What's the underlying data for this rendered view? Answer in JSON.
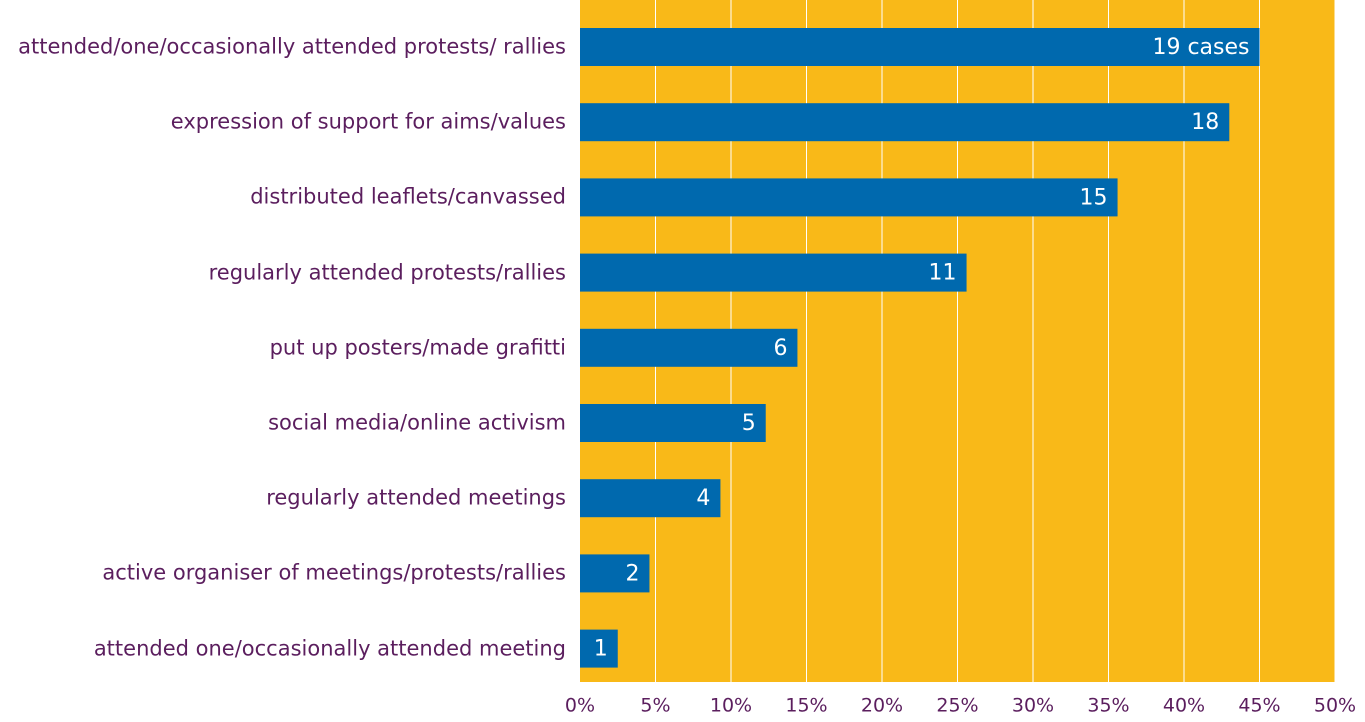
{
  "chart_data": {
    "type": "hbar",
    "categories": [
      "attended/one/occasionally attended protests/ rallies",
      "expression of support for aims/values",
      "distributed leaflets/canvassed",
      "regularly attended protests/rallies",
      "put up posters/made grafitti",
      "social media/online activism",
      "regularly attended meetings",
      "active organiser of meetings/protests/rallies",
      "attended one/occasionally attended meeting"
    ],
    "values": [
      45.0,
      43.0,
      35.6,
      25.6,
      14.4,
      12.3,
      9.3,
      4.6,
      2.5
    ],
    "data_labels": [
      "19 cases",
      "18",
      "15",
      "11",
      "6",
      "5",
      "4",
      "2",
      "1"
    ],
    "color": "#0069ae",
    "background": "#f9b918",
    "xlim": [
      0,
      50
    ],
    "xticks": [
      {
        "value": 0,
        "label": "0%"
      },
      {
        "value": 5,
        "label": "5%"
      },
      {
        "value": 10,
        "label": "10%"
      },
      {
        "value": 15,
        "label": "15%"
      },
      {
        "value": 20,
        "label": "20%"
      },
      {
        "value": 25,
        "label": "25%"
      },
      {
        "value": 30,
        "label": "30%"
      },
      {
        "value": 35,
        "label": "35%"
      },
      {
        "value": 40,
        "label": "40%"
      },
      {
        "value": 45,
        "label": "45%"
      },
      {
        "value": 50,
        "label": "50%"
      }
    ],
    "grid": true
  }
}
